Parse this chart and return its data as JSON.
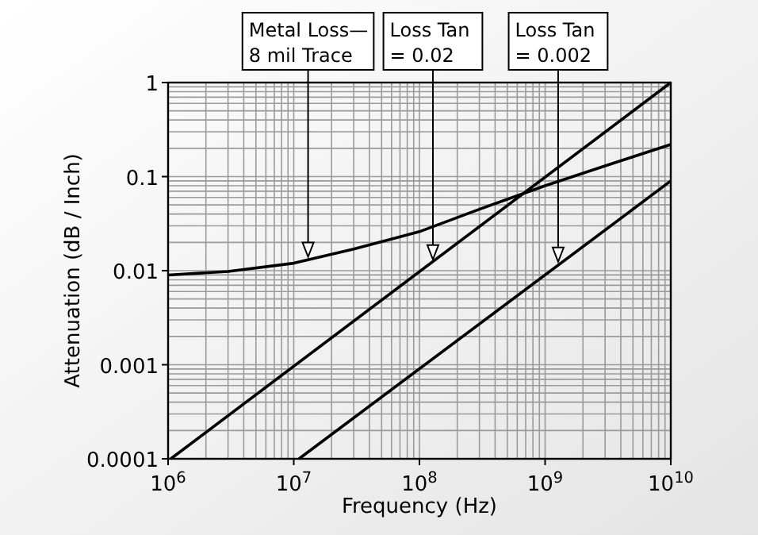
{
  "chart_data": {
    "type": "line",
    "xlabel": "Frequency (Hz)",
    "ylabel": "Attenuation (dB / Inch)",
    "log": "xy",
    "grid": true,
    "line_style": "solid",
    "marker": "none",
    "xlim": [
      1000000,
      10000000000
    ],
    "ylim": [
      0.0001,
      1
    ],
    "xticks": [
      {
        "value": 1000000,
        "label": "10$^{6}$"
      },
      {
        "value": 10000000,
        "label": "10$^{7}$"
      },
      {
        "value": 100000000,
        "label": "10$^{8}$"
      },
      {
        "value": 1000000000,
        "label": "10$^{9}$"
      },
      {
        "value": 10000000000,
        "label": "10$^{10}$"
      }
    ],
    "yticks": [
      0.0001,
      0.001,
      0.01,
      0.1,
      1
    ],
    "series": [
      {
        "color": "#000000",
        "x": [
          1000000,
          3000000,
          10000000,
          30000000,
          100000000,
          300000000,
          1000000000,
          3000000000,
          10000000000
        ],
        "values": [
          0.009,
          0.0098,
          0.012,
          0.017,
          0.026,
          0.045,
          0.08,
          0.13,
          0.22
        ]
      },
      {
        "color": "#000000",
        "x": [
          1050000,
          10000000000
        ],
        "values": [
          0.0001,
          1
        ]
      },
      {
        "color": "#000000",
        "x": [
          11000000,
          10000000000
        ],
        "values": [
          0.0001,
          0.09
        ]
      }
    ],
    "annotations": [
      {
        "text": "Metal Loss—\n8 mil Trace",
        "x": 13000000,
        "y": 0.013
      },
      {
        "text": "Loss Tan\n= 0.02",
        "x": 128000000,
        "y": 0.0122
      },
      {
        "text": "Loss Tan\n= 0.002",
        "x": 1270000000,
        "y": 0.0115
      }
    ]
  }
}
